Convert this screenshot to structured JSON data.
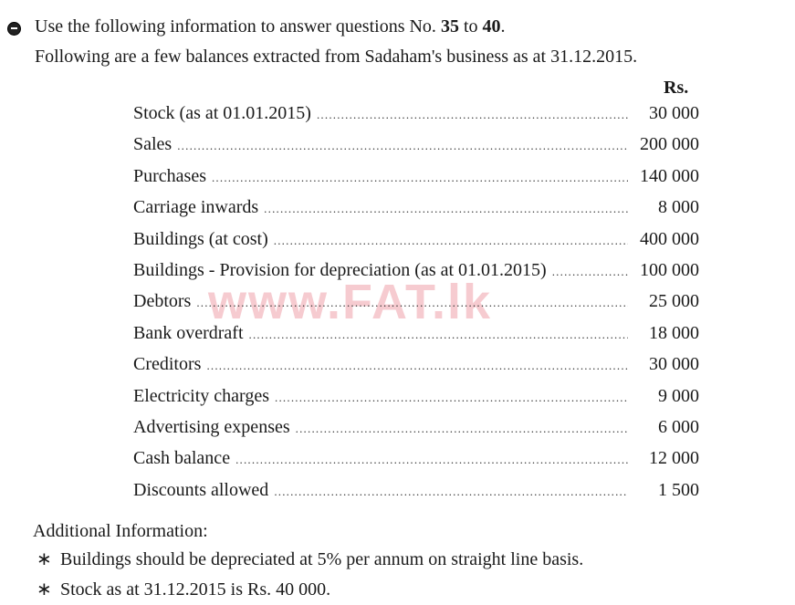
{
  "intro": {
    "prefix": "Use the following information to answer questions No. ",
    "q_from": "35",
    "mid": " to ",
    "q_to": "40",
    "suffix": "."
  },
  "subtitle": "Following are a few balances extracted from Sadaham's business as at 31.12.2015.",
  "currency_header": "Rs.",
  "balances": [
    {
      "label": "Stock  (as at 01.01.2015)",
      "value": "30 000"
    },
    {
      "label": "Sales",
      "value": "200 000"
    },
    {
      "label": "Purchases",
      "value": "140 000"
    },
    {
      "label": "Carriage  inwards",
      "value": "8 000"
    },
    {
      "label": "Buildings  (at cost)",
      "value": "400 000"
    },
    {
      "label": "Buildings - Provision for depreciation (as at 01.01.2015)",
      "value": "100 000"
    },
    {
      "label": "Debtors",
      "value": "25 000"
    },
    {
      "label": "Bank  overdraft",
      "value": "18 000"
    },
    {
      "label": "Creditors",
      "value": "30 000"
    },
    {
      "label": "Electricity charges",
      "value": "9 000"
    },
    {
      "label": "Advertising expenses",
      "value": "6 000"
    },
    {
      "label": "Cash  balance",
      "value": "12 000"
    },
    {
      "label": "Discounts  allowed",
      "value": "1 500"
    }
  ],
  "watermark": "www.FAT.lk",
  "additional": {
    "heading": "Additional  Information:",
    "bullet_symbol": "∗",
    "notes": [
      "Buildings  should  be  depreciated  at  5%  per  annum  on  straight  line  basis.",
      "Stock  as  at  31.12.2015  is  Rs.  40 000."
    ]
  },
  "colors": {
    "watermark": "#f5c3c8",
    "text": "#1a1a1a"
  }
}
